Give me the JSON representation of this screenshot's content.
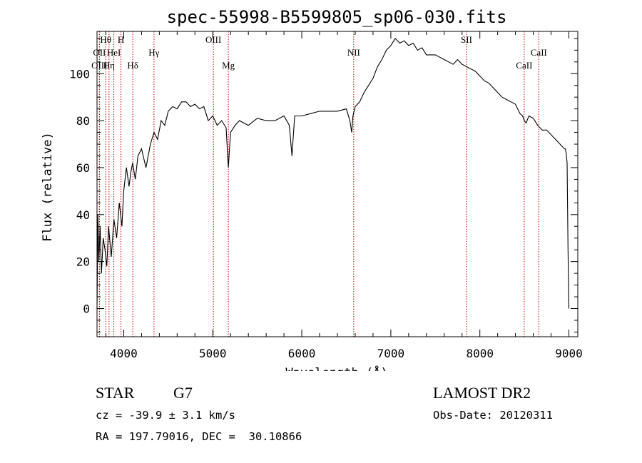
{
  "chart_data": {
    "type": "line",
    "title": "spec-55998-B5599805_sp06-030.fits",
    "xlabel": "Wavelength (Å)",
    "ylabel": "Flux (relative)",
    "xlim": [
      3700,
      9100
    ],
    "ylim": [
      -12,
      118
    ],
    "x_ticks": [
      4000,
      5000,
      6000,
      7000,
      8000,
      9000
    ],
    "y_ticks": [
      0,
      20,
      40,
      60,
      80,
      100
    ],
    "grid": false,
    "line_color": "#000000",
    "marker_color": "#cc0000",
    "series": [
      {
        "x": [
          3700,
          3710,
          3720,
          3735,
          3750,
          3770,
          3790,
          3810,
          3830,
          3860,
          3890,
          3920,
          3950,
          3980,
          4000,
          4030,
          4060,
          4080,
          4100,
          4130,
          4160,
          4200,
          4250,
          4300,
          4340,
          4380,
          4420,
          4460,
          4500,
          4550,
          4600,
          4650,
          4700,
          4750,
          4800,
          4850,
          4900,
          4950,
          5000,
          5050,
          5100,
          5150,
          5175,
          5200,
          5250,
          5300,
          5400,
          5500,
          5600,
          5700,
          5800,
          5860,
          5890,
          5920,
          6000,
          6100,
          6200,
          6300,
          6400,
          6500,
          6540,
          6560,
          6575,
          6600,
          6650,
          6700,
          6750,
          6800,
          6850,
          6900,
          6950,
          7000,
          7050,
          7100,
          7150,
          7200,
          7250,
          7300,
          7350,
          7400,
          7450,
          7500,
          7550,
          7600,
          7650,
          7700,
          7750,
          7800,
          7850,
          7900,
          7950,
          8000,
          8050,
          8100,
          8150,
          8200,
          8250,
          8300,
          8350,
          8400,
          8450,
          8480,
          8500,
          8520,
          8550,
          8600,
          8650,
          8700,
          8750,
          8800,
          8850,
          8900,
          8950,
          8960,
          8970,
          8980,
          8990,
          9000
        ],
        "y": [
          0,
          40,
          20,
          35,
          15,
          30,
          25,
          18,
          35,
          22,
          38,
          30,
          45,
          35,
          50,
          60,
          52,
          58,
          62,
          55,
          65,
          68,
          60,
          70,
          75,
          72,
          80,
          78,
          84,
          86,
          85,
          88,
          88,
          86,
          87,
          85,
          86,
          80,
          82,
          78,
          80,
          77,
          60,
          75,
          78,
          80,
          78,
          81,
          80,
          80,
          82,
          78,
          65,
          82,
          82,
          83,
          84,
          84,
          84,
          85,
          80,
          75,
          82,
          86,
          88,
          92,
          95,
          98,
          103,
          106,
          110,
          112,
          115,
          113,
          114,
          112,
          113,
          110,
          111,
          108,
          108,
          108,
          107,
          106,
          105,
          104,
          106,
          104,
          103,
          102,
          101,
          99,
          97,
          96,
          94,
          92,
          90,
          89,
          88,
          87,
          83,
          82,
          80,
          79,
          82,
          81,
          78,
          76,
          76,
          74,
          72,
          70,
          68,
          68,
          66,
          62,
          25,
          0
        ]
      }
    ],
    "line_markers": [
      {
        "label": "Hθ",
        "x": 3798,
        "row": 1
      },
      {
        "label": "OII",
        "x": 3727,
        "row": 2
      },
      {
        "label": "HeI",
        "x": 3889,
        "row": 2
      },
      {
        "label": "OIII",
        "x": 3727,
        "row": 3
      },
      {
        "label": "Hη",
        "x": 3835,
        "row": 3
      },
      {
        "label": "H",
        "x": 3969,
        "row": 1
      },
      {
        "label": "Hδ",
        "x": 4102,
        "row": 3
      },
      {
        "label": "Hγ",
        "x": 4340,
        "row": 2
      },
      {
        "label": "OIII",
        "x": 5007,
        "row": 1
      },
      {
        "label": "Mg",
        "x": 5175,
        "row": 3
      },
      {
        "label": "NII",
        "x": 6583,
        "row": 2
      },
      {
        "label": "SII",
        "x": 7850,
        "row": 1
      },
      {
        "label": "CaII",
        "x": 8498,
        "row": 3
      },
      {
        "label": "CaII",
        "x": 8662,
        "row": 2
      }
    ]
  },
  "info": {
    "object_class": "STAR",
    "subclass": "G7",
    "survey": "LAMOST DR2",
    "redshift_line": "cz = -39.9 ± 3.1 km/s",
    "obs_date_line": "Obs-Date: 20120311",
    "coords_line": "RA = 197.79016, DEC =  30.10866"
  }
}
